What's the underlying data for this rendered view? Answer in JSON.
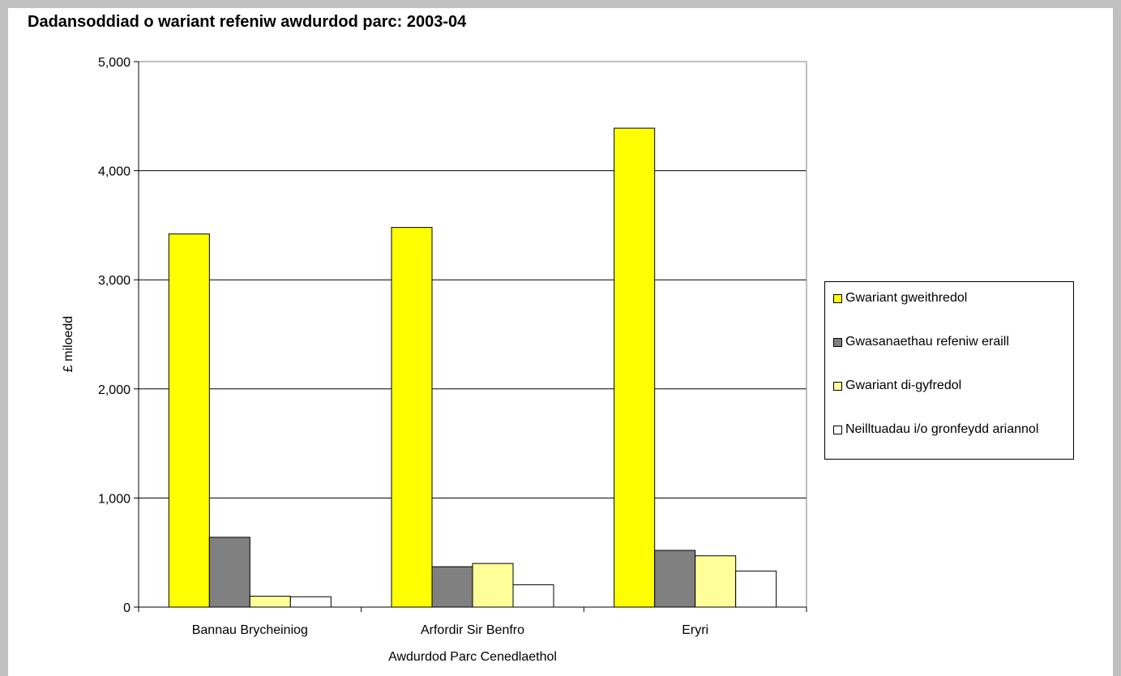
{
  "chart_data": {
    "type": "bar",
    "title": "Dadansoddiad o wariant refeniw awdurdod parc: 2003-04",
    "xlabel": "Awdurdod Parc Cenedlaethol",
    "ylabel": "£ miloedd",
    "categories": [
      "Bannau Brycheiniog",
      "Arfordir Sir Benfro",
      "Eryri"
    ],
    "ylim": [
      0,
      5000
    ],
    "yticks": [
      "0",
      "1,000",
      "2,000",
      "3,000",
      "4,000",
      "5,000"
    ],
    "grid": true,
    "legend_position": "right",
    "series": [
      {
        "name": "Gwariant gweithredol",
        "color": "#ffff00",
        "values": [
          3420,
          3480,
          4390
        ]
      },
      {
        "name": "Gwasanaethau refeniw eraill",
        "color": "#808080",
        "values": [
          640,
          370,
          520
        ]
      },
      {
        "name": "Gwariant di-gyfredol",
        "color": "#ffff99",
        "values": [
          100,
          400,
          470
        ]
      },
      {
        "name": "Neilltuadau i/o gronfeydd ariannol",
        "color": "#ffffff",
        "values": [
          95,
          205,
          330
        ]
      }
    ]
  }
}
